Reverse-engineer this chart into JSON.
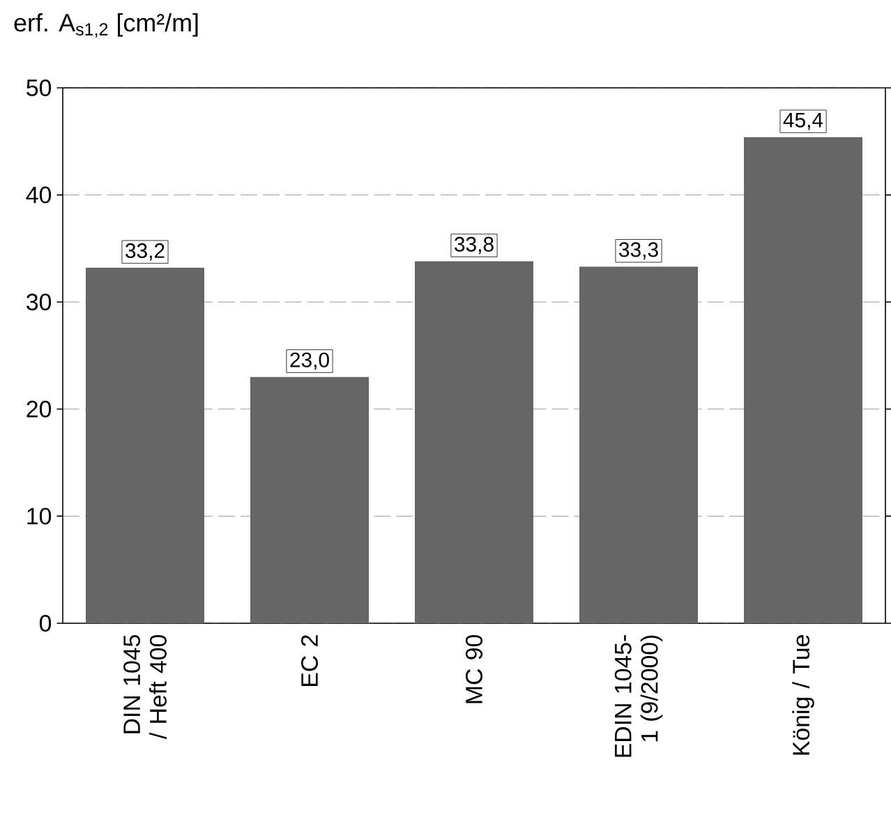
{
  "chart_data": {
    "type": "bar",
    "ylabel": "erf. A$_{s1,2}$ [cm²/m]",
    "categories": [
      "DIN 1045 / Heft 400",
      "EC 2",
      "MC 90",
      "EDIN 1045-1 (9/2000)",
      "König / Tue"
    ],
    "values": [
      33.2,
      23.0,
      33.8,
      33.3,
      45.4
    ],
    "value_labels": [
      "33,2",
      "23,0",
      "33,8",
      "33,3",
      "45,4"
    ],
    "color": "#666666",
    "ylim": [
      0,
      50
    ],
    "yticks": [
      0,
      10,
      20,
      30,
      40,
      50
    ],
    "grid": "y"
  }
}
